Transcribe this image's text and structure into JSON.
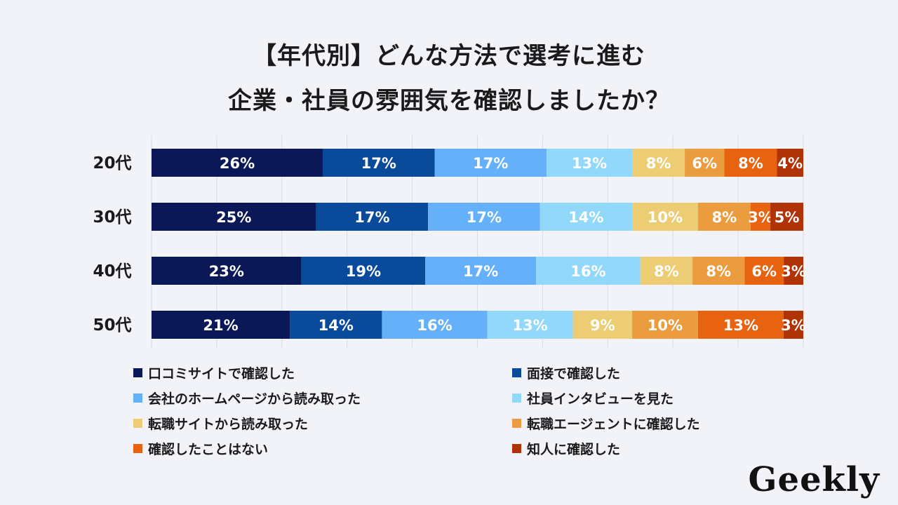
{
  "title": {
    "line1": "【年代別】どんな方法で選考に進む",
    "line2": "企業・社員の雰囲気を確認しましたか？"
  },
  "logo": {
    "text": "Geekly"
  },
  "chart_data": {
    "type": "bar",
    "orientation": "horizontal",
    "stacked": true,
    "normalized": true,
    "categories": [
      "20代",
      "30代",
      "40代",
      "50代"
    ],
    "series": [
      {
        "name": "口コミサイトで確認した",
        "color": "#0b1857",
        "values": [
          26,
          25,
          23,
          21
        ]
      },
      {
        "name": "面接で確認した",
        "color": "#0a4a9b",
        "values": [
          17,
          17,
          19,
          14
        ]
      },
      {
        "name": "会社のホームページから読み取った",
        "color": "#64b0f9",
        "values": [
          17,
          17,
          17,
          16
        ]
      },
      {
        "name": "社員インタビューを見た",
        "color": "#92d8fb",
        "values": [
          13,
          14,
          16,
          13
        ]
      },
      {
        "name": "転職サイトから読み取った",
        "color": "#eccd73",
        "values": [
          8,
          10,
          8,
          9
        ]
      },
      {
        "name": "転職エージェントに確認した",
        "color": "#eb9c3f",
        "values": [
          6,
          8,
          8,
          10
        ]
      },
      {
        "name": "確認したことはない",
        "color": "#e8630f",
        "values": [
          8,
          3,
          6,
          13
        ]
      },
      {
        "name": "知人に確認した",
        "color": "#b03307",
        "values": [
          4,
          5,
          3,
          3
        ]
      }
    ],
    "value_suffix": "%",
    "grid": true,
    "gridlines": 10,
    "legend": "bottom"
  }
}
